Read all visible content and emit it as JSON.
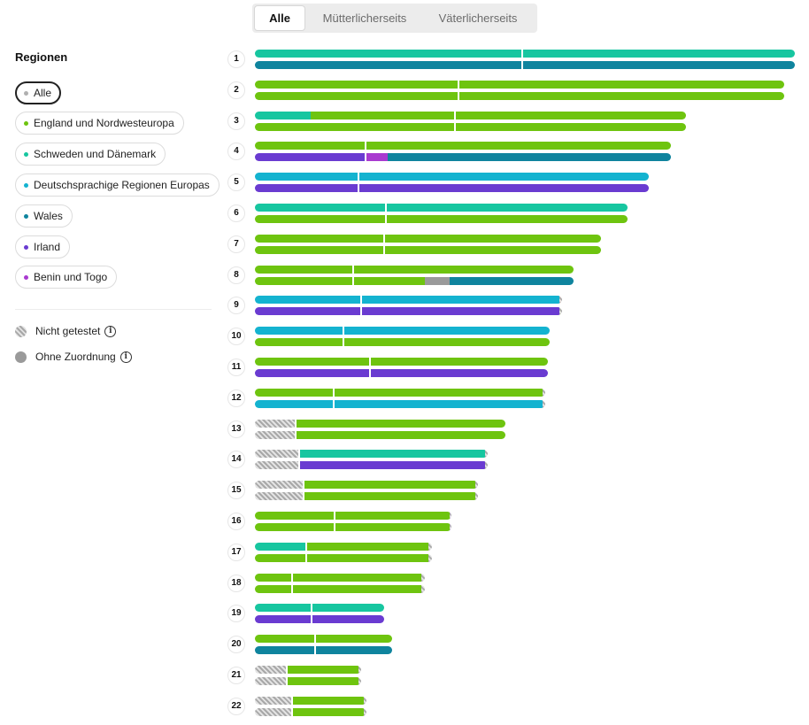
{
  "tabs": [
    {
      "label": "Alle",
      "active": true
    },
    {
      "label": "Mütterlicherseits",
      "active": false
    },
    {
      "label": "Väterlicherseits",
      "active": false
    }
  ],
  "sidebar": {
    "title": "Regionen",
    "regions": [
      {
        "label": "Alle",
        "color": "#b0b0b0",
        "selected": true
      },
      {
        "label": "England und Nordwesteuropa",
        "color": "#6ec40f",
        "selected": false
      },
      {
        "label": "Schweden und Dänemark",
        "color": "#17c6a0",
        "selected": false
      },
      {
        "label": "Deutschsprachige Regionen Europas",
        "color": "#14b3d0",
        "selected": false
      },
      {
        "label": "Wales",
        "color": "#0f849e",
        "selected": false
      },
      {
        "label": "Irland",
        "color": "#6a3bd1",
        "selected": false
      },
      {
        "label": "Benin und Togo",
        "color": "#a93ad0",
        "selected": false
      }
    ],
    "legend": [
      {
        "label": "Nicht getestet",
        "icon": "hatched-circle-icon"
      },
      {
        "label": "Ohne Zuordnung",
        "icon": "grey-circle-icon"
      }
    ],
    "info_glyph": "i"
  },
  "colors": {
    "G": "#6ec40f",
    "T": "#17c6a0",
    "D": "#14b3d0",
    "W": "#0f849e",
    "I": "#6a3bd1",
    "B": "#a93ad0",
    "U": "#9a9a9a",
    "N": "hatch"
  },
  "chromosomes": [
    {
      "label": "1",
      "length": 610,
      "centromere": 302,
      "upper": [
        [
          "T",
          610
        ]
      ],
      "lower": [
        [
          "W",
          610
        ]
      ]
    },
    {
      "label": "2",
      "length": 598,
      "centromere": 230,
      "upper": [
        [
          "G",
          598
        ]
      ],
      "lower": [
        [
          "G",
          598
        ]
      ]
    },
    {
      "label": "3",
      "length": 487,
      "centromere": 226,
      "upper": [
        [
          "T",
          63
        ],
        [
          "G",
          424
        ]
      ],
      "lower": [
        [
          "G",
          487
        ]
      ]
    },
    {
      "label": "4",
      "length": 470,
      "centromere": 125,
      "upper": [
        [
          "G",
          470
        ]
      ],
      "lower": [
        [
          "I",
          125
        ],
        [
          "B",
          25
        ],
        [
          "W",
          320
        ]
      ]
    },
    {
      "label": "5",
      "length": 445,
      "centromere": 117,
      "upper": [
        [
          "D",
          445
        ]
      ],
      "lower": [
        [
          "I",
          445
        ]
      ]
    },
    {
      "label": "6",
      "length": 421,
      "centromere": 148,
      "upper": [
        [
          "T",
          421
        ]
      ],
      "lower": [
        [
          "G",
          421
        ]
      ]
    },
    {
      "label": "7",
      "length": 391,
      "centromere": 146,
      "upper": [
        [
          "G",
          391
        ]
      ],
      "lower": [
        [
          "G",
          391
        ]
      ]
    },
    {
      "label": "8",
      "length": 360,
      "centromere": 111,
      "upper": [
        [
          "G",
          360
        ]
      ],
      "lower": [
        [
          "G",
          192
        ],
        [
          "U",
          28
        ],
        [
          "W",
          140
        ]
      ]
    },
    {
      "label": "9",
      "length": 347,
      "centromere": 120,
      "upper": [
        [
          "D",
          344
        ],
        [
          "N",
          3
        ]
      ],
      "lower": [
        [
          "I",
          344
        ],
        [
          "N",
          3
        ]
      ]
    },
    {
      "label": "10",
      "length": 333,
      "centromere": 100,
      "upper": [
        [
          "D",
          333
        ]
      ],
      "lower": [
        [
          "G",
          333
        ]
      ]
    },
    {
      "label": "11",
      "length": 331,
      "centromere": 130,
      "upper": [
        [
          "G",
          331
        ]
      ],
      "lower": [
        [
          "I",
          331
        ]
      ]
    },
    {
      "label": "12",
      "length": 328,
      "centromere": 89,
      "upper": [
        [
          "G",
          325
        ],
        [
          "N",
          3
        ]
      ],
      "lower": [
        [
          "D",
          325
        ],
        [
          "N",
          3
        ]
      ]
    },
    {
      "label": "13",
      "length": 283,
      "centromere": 46,
      "upper": [
        [
          "N",
          46
        ],
        [
          "G",
          237
        ]
      ],
      "lower": [
        [
          "N",
          46
        ],
        [
          "G",
          237
        ]
      ]
    },
    {
      "label": "14",
      "length": 263,
      "centromere": 50,
      "upper": [
        [
          "N",
          50
        ],
        [
          "T",
          210
        ],
        [
          "N",
          3
        ]
      ],
      "lower": [
        [
          "N",
          50
        ],
        [
          "I",
          210
        ],
        [
          "N",
          3
        ]
      ]
    },
    {
      "label": "15",
      "length": 252,
      "centromere": 55,
      "upper": [
        [
          "N",
          55
        ],
        [
          "G",
          194
        ],
        [
          "N",
          3
        ]
      ],
      "lower": [
        [
          "N",
          55
        ],
        [
          "G",
          194
        ],
        [
          "N",
          3
        ]
      ]
    },
    {
      "label": "16",
      "length": 222,
      "centromere": 90,
      "upper": [
        [
          "G",
          220
        ],
        [
          "N",
          2
        ]
      ],
      "lower": [
        [
          "G",
          220
        ],
        [
          "N",
          2
        ]
      ]
    },
    {
      "label": "17",
      "length": 200,
      "centromere": 58,
      "upper": [
        [
          "T",
          58
        ],
        [
          "G",
          138
        ],
        [
          "N",
          4
        ]
      ],
      "lower": [
        [
          "G",
          196
        ],
        [
          "N",
          4
        ]
      ]
    },
    {
      "label": "18",
      "length": 192,
      "centromere": 42,
      "upper": [
        [
          "G",
          188
        ],
        [
          "N",
          4
        ]
      ],
      "lower": [
        [
          "G",
          188
        ],
        [
          "N",
          4
        ]
      ]
    },
    {
      "label": "19",
      "length": 146,
      "centromere": 64,
      "upper": [
        [
          "T",
          146
        ]
      ],
      "lower": [
        [
          "I",
          146
        ]
      ]
    },
    {
      "label": "20",
      "length": 155,
      "centromere": 68,
      "upper": [
        [
          "G",
          155
        ]
      ],
      "lower": [
        [
          "W",
          155
        ]
      ]
    },
    {
      "label": "21",
      "length": 120,
      "centromere": 36,
      "upper": [
        [
          "N",
          36
        ],
        [
          "G",
          81
        ],
        [
          "N",
          3
        ]
      ],
      "lower": [
        [
          "N",
          36
        ],
        [
          "G",
          81
        ],
        [
          "N",
          3
        ]
      ]
    },
    {
      "label": "22",
      "length": 126,
      "centromere": 42,
      "upper": [
        [
          "N",
          42
        ],
        [
          "G",
          81
        ],
        [
          "N",
          3
        ]
      ],
      "lower": [
        [
          "N",
          42
        ],
        [
          "G",
          81
        ],
        [
          "N",
          3
        ]
      ]
    }
  ]
}
